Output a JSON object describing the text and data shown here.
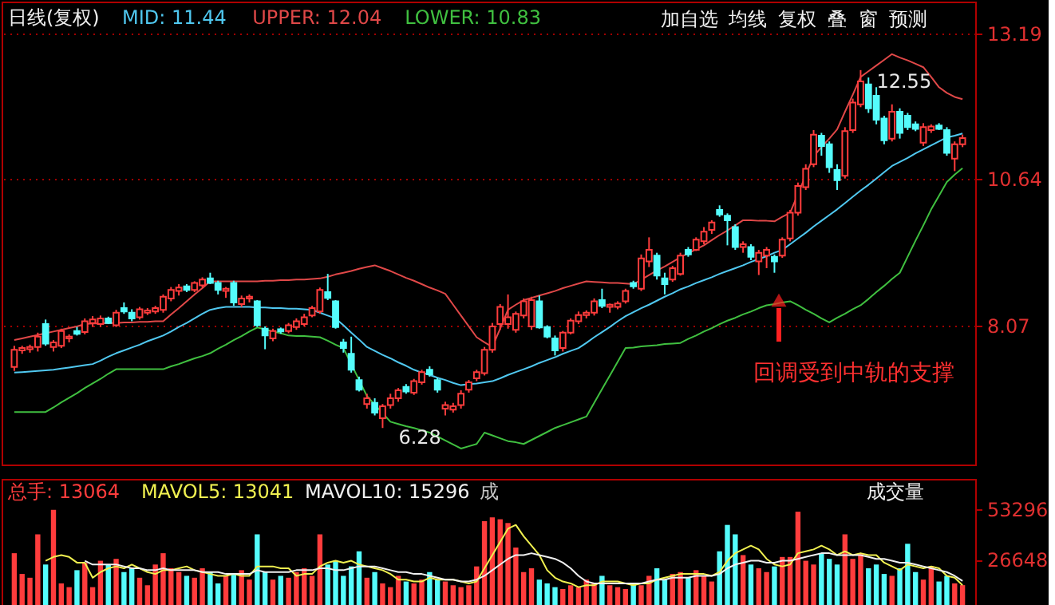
{
  "chart_data": [
    {
      "type": "candlestick",
      "title": "日线(复权)",
      "tick_labels": "y",
      "grid": "y",
      "ylim": [
        5.64,
        13.75
      ],
      "yticks": [
        8.07,
        10.64,
        13.19
      ],
      "categories": [
        null,
        null,
        null,
        null,
        null,
        null,
        null,
        null,
        null,
        null,
        null,
        null,
        null,
        null,
        null,
        null,
        null,
        null,
        null,
        null,
        null,
        null,
        null,
        null,
        null,
        null,
        null,
        null,
        null,
        null,
        null,
        null,
        null,
        null,
        null,
        null,
        null,
        null,
        null,
        null,
        null,
        null,
        null,
        null,
        null,
        null,
        null,
        null,
        null,
        null,
        null,
        null,
        null,
        null,
        null,
        null,
        null,
        null,
        null,
        null,
        null,
        null,
        null,
        null,
        null,
        null,
        null,
        null,
        null,
        null,
        null,
        null,
        null,
        null,
        null,
        null,
        null,
        null,
        null,
        null,
        null,
        null,
        null,
        null,
        null,
        null,
        null,
        null,
        null,
        null,
        null,
        null,
        null,
        null,
        null,
        null,
        null,
        null,
        null,
        null,
        null,
        null,
        null,
        null,
        null,
        null,
        null,
        null,
        null,
        null,
        null,
        null,
        null,
        null,
        null,
        null,
        null,
        null,
        null,
        null,
        null,
        null
      ],
      "ohlc": [
        [
          7.35,
          7.72,
          7.28,
          7.65
        ],
        [
          7.64,
          7.72,
          7.58,
          7.68
        ],
        [
          7.66,
          7.74,
          7.6,
          7.7
        ],
        [
          7.7,
          7.95,
          7.62,
          7.88
        ],
        [
          8.1,
          8.18,
          7.72,
          7.76
        ],
        [
          7.7,
          7.82,
          7.62,
          7.78
        ],
        [
          7.72,
          8.02,
          7.68,
          7.98
        ],
        [
          7.85,
          7.92,
          7.78,
          7.88
        ],
        [
          7.98,
          8.05,
          7.9,
          7.93
        ],
        [
          7.96,
          8.2,
          7.92,
          8.15
        ],
        [
          8.12,
          8.24,
          8.05,
          8.18
        ],
        [
          8.1,
          8.25,
          8.05,
          8.2
        ],
        [
          8.2,
          8.23,
          8.1,
          8.12
        ],
        [
          8.08,
          8.35,
          8.05,
          8.3
        ],
        [
          8.38,
          8.48,
          8.28,
          8.32
        ],
        [
          8.3,
          8.36,
          8.15,
          8.2
        ],
        [
          8.22,
          8.4,
          8.18,
          8.36
        ],
        [
          8.3,
          8.38,
          8.26,
          8.34
        ],
        [
          8.32,
          8.42,
          8.28,
          8.38
        ],
        [
          8.35,
          8.62,
          8.3,
          8.58
        ],
        [
          8.55,
          8.75,
          8.5,
          8.7
        ],
        [
          8.68,
          8.8,
          8.6,
          8.74
        ],
        [
          8.76,
          8.8,
          8.66,
          8.7
        ],
        [
          8.7,
          8.85,
          8.66,
          8.82
        ],
        [
          8.78,
          8.92,
          8.74,
          8.88
        ],
        [
          8.9,
          9.0,
          8.8,
          8.82
        ],
        [
          8.82,
          8.86,
          8.62,
          8.7
        ],
        [
          8.68,
          8.75,
          8.56,
          8.72
        ],
        [
          8.82,
          8.86,
          8.42,
          8.48
        ],
        [
          8.45,
          8.6,
          8.4,
          8.55
        ],
        [
          8.55,
          8.62,
          8.48,
          8.58
        ],
        [
          8.5,
          8.52,
          8.05,
          8.08
        ],
        [
          8.02,
          8.06,
          7.66,
          7.9
        ],
        [
          7.85,
          8.02,
          7.8,
          7.98
        ],
        [
          8.01,
          8.04,
          7.93,
          7.97
        ],
        [
          7.98,
          8.12,
          7.94,
          8.08
        ],
        [
          8.05,
          8.2,
          8.0,
          8.15
        ],
        [
          8.1,
          8.28,
          8.06,
          8.22
        ],
        [
          8.25,
          8.42,
          8.22,
          8.38
        ],
        [
          8.32,
          8.74,
          8.28,
          8.7
        ],
        [
          8.66,
          8.98,
          8.52,
          8.56
        ],
        [
          8.5,
          8.52,
          8.02,
          8.05
        ],
        [
          7.78,
          7.84,
          7.6,
          7.68
        ],
        [
          7.58,
          7.88,
          7.25,
          7.3
        ],
        [
          7.12,
          7.18,
          6.92,
          6.95
        ],
        [
          6.7,
          6.88,
          6.62,
          6.8
        ],
        [
          6.72,
          6.8,
          6.5,
          6.55
        ],
        [
          6.45,
          6.7,
          6.28,
          6.66
        ],
        [
          6.68,
          6.88,
          6.62,
          6.8
        ],
        [
          6.8,
          6.98,
          6.74,
          6.94
        ],
        [
          7.0,
          7.05,
          6.88,
          6.92
        ],
        [
          6.9,
          7.14,
          6.86,
          7.1
        ],
        [
          7.08,
          7.3,
          7.04,
          7.26
        ],
        [
          7.3,
          7.36,
          7.18,
          7.22
        ],
        [
          7.12,
          7.16,
          6.9,
          6.95
        ],
        [
          6.62,
          6.74,
          6.5,
          6.68
        ],
        [
          6.6,
          6.72,
          6.55,
          6.66
        ],
        [
          6.68,
          6.94,
          6.62,
          6.88
        ],
        [
          6.95,
          7.12,
          6.9,
          7.08
        ],
        [
          7.15,
          7.3,
          7.1,
          7.26
        ],
        [
          7.24,
          7.7,
          7.2,
          7.65
        ],
        [
          7.65,
          8.12,
          7.6,
          8.06
        ],
        [
          8.1,
          8.45,
          8.0,
          8.4
        ],
        [
          8.1,
          8.62,
          8.02,
          8.22
        ],
        [
          8.0,
          8.32,
          7.95,
          8.28
        ],
        [
          8.25,
          8.55,
          8.2,
          8.5
        ],
        [
          8.06,
          8.58,
          8.0,
          8.52
        ],
        [
          8.5,
          8.6,
          8.02,
          8.04
        ],
        [
          8.05,
          8.08,
          7.85,
          7.88
        ],
        [
          7.85,
          7.9,
          7.55,
          7.64
        ],
        [
          7.68,
          7.98,
          7.62,
          7.95
        ],
        [
          7.95,
          8.2,
          7.92,
          8.16
        ],
        [
          8.15,
          8.32,
          8.1,
          8.26
        ],
        [
          8.26,
          8.34,
          8.2,
          8.3
        ],
        [
          8.3,
          8.55,
          8.25,
          8.5
        ],
        [
          8.52,
          8.72,
          8.38,
          8.42
        ],
        [
          8.4,
          8.46,
          8.3,
          8.44
        ],
        [
          8.4,
          8.5,
          8.36,
          8.46
        ],
        [
          8.5,
          8.72,
          8.46,
          8.68
        ],
        [
          8.82,
          8.86,
          8.72,
          8.76
        ],
        [
          8.72,
          9.32,
          8.68,
          9.25
        ],
        [
          9.2,
          9.62,
          9.1,
          9.4
        ],
        [
          9.3,
          9.35,
          8.88,
          8.95
        ],
        [
          8.9,
          9.0,
          8.62,
          8.8
        ],
        [
          8.88,
          9.12,
          8.84,
          9.08
        ],
        [
          8.98,
          9.35,
          8.95,
          9.3
        ],
        [
          9.4,
          9.45,
          9.28,
          9.32
        ],
        [
          9.4,
          9.62,
          9.38,
          9.58
        ],
        [
          9.55,
          9.8,
          9.5,
          9.72
        ],
        [
          9.75,
          9.92,
          9.68,
          9.88
        ],
        [
          10.1,
          10.18,
          9.98,
          10.02
        ],
        [
          10.0,
          10.04,
          9.48,
          9.92
        ],
        [
          9.8,
          9.85,
          9.4,
          9.45
        ],
        [
          9.45,
          9.55,
          9.35,
          9.5
        ],
        [
          9.45,
          9.5,
          9.22,
          9.28
        ],
        [
          9.2,
          9.4,
          8.96,
          9.35
        ],
        [
          9.3,
          9.45,
          9.08,
          9.4
        ],
        [
          9.28,
          9.32,
          9.0,
          9.2
        ],
        [
          9.3,
          9.62,
          9.26,
          9.58
        ],
        [
          9.6,
          10.1,
          9.55,
          10.05
        ],
        [
          10.05,
          10.58,
          10.0,
          10.52
        ],
        [
          10.5,
          10.9,
          10.45,
          10.82
        ],
        [
          10.9,
          11.5,
          10.85,
          11.42
        ],
        [
          11.4,
          11.45,
          11.05,
          11.22
        ],
        [
          11.25,
          11.3,
          10.75,
          10.85
        ],
        [
          10.8,
          10.9,
          10.45,
          10.62
        ],
        [
          10.7,
          11.55,
          10.65,
          11.48
        ],
        [
          11.5,
          12.05,
          11.45,
          11.98
        ],
        [
          11.95,
          12.55,
          11.9,
          12.35
        ],
        [
          12.3,
          12.42,
          11.8,
          11.88
        ],
        [
          12.1,
          12.25,
          11.6,
          11.68
        ],
        [
          11.7,
          11.75,
          11.25,
          11.32
        ],
        [
          11.35,
          11.95,
          11.3,
          11.82
        ],
        [
          11.82,
          11.88,
          11.35,
          11.45
        ],
        [
          11.75,
          11.8,
          11.5,
          11.55
        ],
        [
          11.6,
          11.65,
          11.48,
          11.52
        ],
        [
          11.28,
          11.62,
          11.22,
          11.55
        ],
        [
          11.5,
          11.6,
          11.45,
          11.56
        ],
        [
          11.58,
          11.62,
          11.5,
          11.52
        ],
        [
          11.5,
          11.55,
          11.05,
          11.1
        ],
        [
          11.0,
          11.3,
          10.78,
          11.25
        ],
        [
          11.25,
          11.42,
          11.2,
          11.36
        ]
      ],
      "colors": [
        "#ff3c3c",
        "#ff3c3c",
        "#ff3c3c",
        "#ff3c3c",
        "#54fcfc",
        "#ff3c3c",
        "#ff3c3c",
        "#ff3c3c",
        "#54fcfc",
        "#ff3c3c",
        "#ff3c3c",
        "#ff3c3c",
        "#54fcfc",
        "#ff3c3c",
        "#54fcfc",
        "#54fcfc",
        "#ff3c3c",
        "#ff3c3c",
        "#ff3c3c",
        "#ff3c3c",
        "#ff3c3c",
        "#ff3c3c",
        "#54fcfc",
        "#ff3c3c",
        "#ff3c3c",
        "#54fcfc",
        "#54fcfc",
        "#ff3c3c",
        "#54fcfc",
        "#ff3c3c",
        "#ff3c3c",
        "#54fcfc",
        "#54fcfc",
        "#ff3c3c",
        "#54fcfc",
        "#ff3c3c",
        "#ff3c3c",
        "#ff3c3c",
        "#ff3c3c",
        "#ff3c3c",
        "#54fcfc",
        "#54fcfc",
        "#54fcfc",
        "#54fcfc",
        "#54fcfc",
        "#ff3c3c",
        "#54fcfc",
        "#ff3c3c",
        "#ff3c3c",
        "#ff3c3c",
        "#54fcfc",
        "#ff3c3c",
        "#ff3c3c",
        "#54fcfc",
        "#54fcfc",
        "#ff3c3c",
        "#ff3c3c",
        "#ff3c3c",
        "#ff3c3c",
        "#ff3c3c",
        "#ff3c3c",
        "#ff3c3c",
        "#ff3c3c",
        "#ff3c3c",
        "#ff3c3c",
        "#ff3c3c",
        "#ff3c3c",
        "#54fcfc",
        "#54fcfc",
        "#54fcfc",
        "#ff3c3c",
        "#ff3c3c",
        "#ff3c3c",
        "#ff3c3c",
        "#ff3c3c",
        "#54fcfc",
        "#ff3c3c",
        "#ff3c3c",
        "#ff3c3c",
        "#54fcfc",
        "#ff3c3c",
        "#ff3c3c",
        "#54fcfc",
        "#54fcfc",
        "#ff3c3c",
        "#ff3c3c",
        "#54fcfc",
        "#ff3c3c",
        "#ff3c3c",
        "#ff3c3c",
        "#54fcfc",
        "#54fcfc",
        "#54fcfc",
        "#ff3c3c",
        "#54fcfc",
        "#ff3c3c",
        "#ff3c3c",
        "#54fcfc",
        "#ff3c3c",
        "#ff3c3c",
        "#ff3c3c",
        "#ff3c3c",
        "#ff3c3c",
        "#54fcfc",
        "#54fcfc",
        "#54fcfc",
        "#ff3c3c",
        "#ff3c3c",
        "#ff3c3c",
        "#54fcfc",
        "#54fcfc",
        "#54fcfc",
        "#ff3c3c",
        "#54fcfc",
        "#54fcfc",
        "#54fcfc",
        "#ff3c3c",
        "#ff3c3c",
        "#54fcfc",
        "#54fcfc",
        "#ff3c3c",
        "#ff3c3c"
      ],
      "series": [
        {
          "name": "MID: 11.44",
          "type": "line",
          "color": "#50c8f0",
          "values": [
            7.25,
            7.26,
            7.27,
            7.28,
            7.29,
            7.3,
            7.32,
            7.34,
            7.36,
            7.38,
            7.4,
            7.46,
            7.53,
            7.59,
            7.64,
            7.69,
            7.74,
            7.8,
            7.85,
            7.9,
            7.97,
            8.05,
            8.12,
            8.2,
            8.28,
            8.35,
            8.38,
            8.4,
            8.4,
            8.4,
            8.4,
            8.39,
            8.39,
            8.38,
            8.38,
            8.37,
            8.37,
            8.36,
            8.35,
            8.3,
            8.25,
            8.2,
            8.08,
            7.95,
            7.83,
            7.7,
            7.63,
            7.56,
            7.5,
            7.43,
            7.37,
            7.3,
            7.25,
            7.21,
            7.16,
            7.12,
            7.07,
            7.03,
            7.05,
            7.06,
            7.08,
            7.1,
            7.15,
            7.21,
            7.26,
            7.31,
            7.36,
            7.42,
            7.47,
            7.52,
            7.58,
            7.63,
            7.68,
            7.77,
            7.87,
            7.96,
            8.05,
            8.15,
            8.24,
            8.31,
            8.38,
            8.44,
            8.51,
            8.58,
            8.64,
            8.71,
            8.76,
            8.82,
            8.87,
            8.92,
            8.98,
            9.03,
            9.08,
            9.13,
            9.19,
            9.24,
            9.29,
            9.35,
            9.4,
            9.5,
            9.6,
            9.7,
            9.81,
            9.91,
            10.01,
            10.11,
            10.22,
            10.33,
            10.44,
            10.54,
            10.65,
            10.76,
            10.87,
            10.94,
            11.01,
            11.09,
            11.16,
            11.23,
            11.3,
            11.37,
            11.4,
            11.44
          ]
        },
        {
          "name": "UPPER: 12.04",
          "type": "line",
          "color": "#e04848",
          "values": [
            7.82,
            7.85,
            7.88,
            7.91,
            7.94,
            7.97,
            8.0,
            8.03,
            8.06,
            8.1,
            8.11,
            8.11,
            8.12,
            8.12,
            8.13,
            8.13,
            8.14,
            8.14,
            8.15,
            8.15,
            8.27,
            8.38,
            8.5,
            8.62,
            8.73,
            8.85,
            8.85,
            8.85,
            8.85,
            8.85,
            8.85,
            8.85,
            8.86,
            8.86,
            8.87,
            8.87,
            8.88,
            8.88,
            8.89,
            8.9,
            8.93,
            8.97,
            9.0,
            9.03,
            9.07,
            9.1,
            9.13,
            9.08,
            9.03,
            8.97,
            8.91,
            8.86,
            8.8,
            8.74,
            8.69,
            8.63,
            8.44,
            8.25,
            8.06,
            7.87,
            7.78,
            7.7,
            8.02,
            8.35,
            8.44,
            8.52,
            8.56,
            8.6,
            8.64,
            8.68,
            8.73,
            8.77,
            8.81,
            8.85,
            8.84,
            8.83,
            8.82,
            8.82,
            8.81,
            8.8,
            8.88,
            8.96,
            9.04,
            9.11,
            9.19,
            9.27,
            9.34,
            9.41,
            9.48,
            9.57,
            9.66,
            9.74,
            9.83,
            9.92,
            9.92,
            9.91,
            9.91,
            9.9,
            9.98,
            10.05,
            10.38,
            10.71,
            11.04,
            11.2,
            11.35,
            11.51,
            11.82,
            12.12,
            12.43,
            12.53,
            12.63,
            12.73,
            12.83,
            12.77,
            12.72,
            12.66,
            12.6,
            12.43,
            12.25,
            12.15,
            12.08,
            12.04
          ]
        },
        {
          "name": "LOWER: 10.83",
          "type": "line",
          "color": "#40c040",
          "values": [
            6.56,
            6.56,
            6.56,
            6.56,
            6.56,
            6.64,
            6.73,
            6.81,
            6.89,
            6.98,
            7.06,
            7.14,
            7.23,
            7.31,
            7.31,
            7.31,
            7.31,
            7.31,
            7.31,
            7.31,
            7.36,
            7.4,
            7.45,
            7.5,
            7.54,
            7.59,
            7.67,
            7.74,
            7.82,
            7.89,
            7.97,
            8.04,
            8.01,
            7.97,
            7.94,
            7.9,
            7.89,
            7.89,
            7.88,
            7.87,
            7.81,
            7.74,
            7.68,
            7.4,
            7.12,
            6.84,
            6.69,
            6.54,
            6.39,
            6.35,
            6.31,
            6.28,
            6.24,
            6.2,
            6.13,
            6.06,
            5.99,
            5.92,
            5.96,
            6.0,
            6.2,
            6.15,
            6.1,
            6.05,
            6.03,
            6.0,
            6.07,
            6.14,
            6.21,
            6.28,
            6.33,
            6.38,
            6.43,
            6.48,
            6.72,
            6.96,
            7.2,
            7.44,
            7.68,
            7.69,
            7.71,
            7.72,
            7.73,
            7.75,
            7.76,
            7.77,
            7.84,
            7.9,
            7.97,
            8.03,
            8.1,
            8.16,
            8.21,
            8.27,
            8.32,
            8.38,
            8.43,
            8.45,
            8.48,
            8.5,
            8.43,
            8.35,
            8.28,
            8.2,
            8.13,
            8.21,
            8.28,
            8.36,
            8.43,
            8.54,
            8.66,
            8.77,
            8.89,
            9.0,
            9.28,
            9.56,
            9.83,
            10.11,
            10.35,
            10.59,
            10.72,
            10.83
          ]
        }
      ],
      "annotations": [
        "6.28",
        "12.55",
        "回调受到中轨的支撑",
        "加自选",
        "均线",
        "复权",
        "叠",
        "窗",
        "预测"
      ]
    },
    {
      "type": "bar",
      "tick_labels": "y",
      "ylim": [
        0,
        69400
      ],
      "yticks": [
        26648,
        53296
      ],
      "categories": [
        null,
        null,
        null,
        null,
        null,
        null,
        null,
        null,
        null,
        null,
        null,
        null,
        null,
        null,
        null,
        null,
        null,
        null,
        null,
        null,
        null,
        null,
        null,
        null,
        null,
        null,
        null,
        null,
        null,
        null,
        null,
        null,
        null,
        null,
        null,
        null,
        null,
        null,
        null,
        null,
        null,
        null,
        null,
        null,
        null,
        null,
        null,
        null,
        null,
        null,
        null,
        null,
        null,
        null,
        null,
        null,
        null,
        null,
        null,
        null,
        null,
        null,
        null,
        null,
        null,
        null,
        null,
        null,
        null,
        null,
        null,
        null,
        null,
        null,
        null,
        null,
        null,
        null,
        null,
        null,
        null,
        null,
        null,
        null,
        null,
        null,
        null,
        null,
        null,
        null,
        null,
        null,
        null,
        null,
        null,
        null,
        null,
        null,
        null,
        null,
        null,
        null,
        null,
        null,
        null,
        null,
        null,
        null,
        null,
        null,
        null,
        null,
        null,
        null,
        null,
        null,
        null,
        null,
        null,
        null,
        null,
        null
      ],
      "series": [
        {
          "name": "总手: 13064",
          "type": "bar",
          "colors": [
            "#ff3c3c",
            "#ff3c3c",
            "#ff3c3c",
            "#ff3c3c",
            "#54fcfc",
            "#ff3c3c",
            "#ff3c3c",
            "#ff3c3c",
            "#54fcfc",
            "#ff3c3c",
            "#ff3c3c",
            "#ff3c3c",
            "#54fcfc",
            "#ff3c3c",
            "#54fcfc",
            "#54fcfc",
            "#ff3c3c",
            "#ff3c3c",
            "#ff3c3c",
            "#ff3c3c",
            "#ff3c3c",
            "#ff3c3c",
            "#54fcfc",
            "#ff3c3c",
            "#ff3c3c",
            "#54fcfc",
            "#54fcfc",
            "#ff3c3c",
            "#54fcfc",
            "#ff3c3c",
            "#ff3c3c",
            "#54fcfc",
            "#54fcfc",
            "#ff3c3c",
            "#54fcfc",
            "#ff3c3c",
            "#ff3c3c",
            "#ff3c3c",
            "#ff3c3c",
            "#ff3c3c",
            "#54fcfc",
            "#54fcfc",
            "#54fcfc",
            "#54fcfc",
            "#54fcfc",
            "#ff3c3c",
            "#54fcfc",
            "#ff3c3c",
            "#ff3c3c",
            "#ff3c3c",
            "#54fcfc",
            "#ff3c3c",
            "#ff3c3c",
            "#54fcfc",
            "#54fcfc",
            "#ff3c3c",
            "#ff3c3c",
            "#ff3c3c",
            "#ff3c3c",
            "#ff3c3c",
            "#ff3c3c",
            "#ff3c3c",
            "#ff3c3c",
            "#ff3c3c",
            "#ff3c3c",
            "#ff3c3c",
            "#ff3c3c",
            "#54fcfc",
            "#54fcfc",
            "#54fcfc",
            "#ff3c3c",
            "#ff3c3c",
            "#ff3c3c",
            "#ff3c3c",
            "#ff3c3c",
            "#54fcfc",
            "#ff3c3c",
            "#ff3c3c",
            "#ff3c3c",
            "#54fcfc",
            "#ff3c3c",
            "#ff3c3c",
            "#54fcfc",
            "#54fcfc",
            "#ff3c3c",
            "#ff3c3c",
            "#54fcfc",
            "#ff3c3c",
            "#ff3c3c",
            "#ff3c3c",
            "#54fcfc",
            "#54fcfc",
            "#54fcfc",
            "#ff3c3c",
            "#54fcfc",
            "#ff3c3c",
            "#ff3c3c",
            "#54fcfc",
            "#ff3c3c",
            "#ff3c3c",
            "#ff3c3c",
            "#ff3c3c",
            "#ff3c3c",
            "#54fcfc",
            "#54fcfc",
            "#54fcfc",
            "#ff3c3c",
            "#ff3c3c",
            "#ff3c3c",
            "#54fcfc",
            "#54fcfc",
            "#54fcfc",
            "#ff3c3c",
            "#54fcfc",
            "#54fcfc",
            "#54fcfc",
            "#ff3c3c",
            "#ff3c3c",
            "#54fcfc",
            "#54fcfc",
            "#ff3c3c",
            "#ff3c3c"
          ],
          "values": [
            30000,
            19000,
            17000,
            40000,
            24000,
            53000,
            14000,
            12000,
            21000,
            25000,
            12000,
            26000,
            24000,
            27000,
            20000,
            22000,
            17000,
            13000,
            24000,
            30000,
            22000,
            20000,
            18000,
            17000,
            22000,
            20000,
            14000,
            18000,
            19000,
            21000,
            16000,
            40000,
            20000,
            16000,
            18000,
            17000,
            20000,
            22000,
            18000,
            40000,
            24000,
            26000,
            18000,
            23000,
            31000,
            17000,
            20000,
            14000,
            12000,
            18000,
            15000,
            14000,
            16000,
            20000,
            16000,
            15000,
            13000,
            12000,
            13000,
            23000,
            47000,
            49000,
            48000,
            46000,
            33000,
            20000,
            22000,
            16000,
            14000,
            12000,
            11000,
            13000,
            12000,
            16000,
            14000,
            18000,
            13000,
            12000,
            11000,
            14000,
            13000,
            18000,
            22000,
            16000,
            19000,
            20000,
            17000,
            21000,
            18000,
            15000,
            31000,
            45000,
            40000,
            29000,
            24000,
            22000,
            20000,
            23000,
            28000,
            28000,
            52000,
            26000,
            24000,
            30000,
            27000,
            24000,
            40000,
            27000,
            30000,
            22000,
            24000,
            19000,
            18000,
            22000,
            35000,
            20000,
            16000,
            23000,
            15000,
            18000,
            14000,
            13064
          ]
        },
        {
          "name": "MAVOL5: 13041",
          "type": "line",
          "color": "#f0f050",
          "values": [
            null,
            null,
            null,
            null,
            26000,
            28000,
            29000,
            28000,
            25000,
            25000,
            17000,
            20000,
            22000,
            23000,
            22000,
            24000,
            22000,
            20000,
            19000,
            21000,
            21000,
            22000,
            23000,
            21000,
            20000,
            19000,
            18000,
            18000,
            19000,
            18000,
            18000,
            23000,
            23000,
            23000,
            22000,
            22000,
            18000,
            19000,
            19000,
            23000,
            25000,
            26000,
            25000,
            26000,
            24000,
            23000,
            22000,
            21000,
            19000,
            16000,
            16000,
            15000,
            15000,
            17000,
            16000,
            16000,
            16000,
            15000,
            14000,
            15000,
            22000,
            29000,
            36000,
            43000,
            45000,
            39000,
            34000,
            29000,
            21000,
            17000,
            15000,
            14000,
            12000,
            13000,
            13000,
            15000,
            15000,
            15000,
            14000,
            13000,
            14000,
            14000,
            16000,
            17000,
            18000,
            19000,
            19000,
            19000,
            19000,
            18000,
            20000,
            26000,
            30000,
            32000,
            34000,
            32000,
            27000,
            24000,
            23000,
            24000,
            30000,
            31000,
            32000,
            34000,
            32000,
            29000,
            31000,
            29000,
            30000,
            29000,
            29000,
            25000,
            23000,
            21000,
            24000,
            23000,
            22000,
            23000,
            22000,
            18000,
            17000,
            13041
          ]
        },
        {
          "name": "MAVOL10: 15296",
          "type": "line",
          "color": "#f0f0f0",
          "values": [
            null,
            null,
            null,
            null,
            null,
            null,
            null,
            null,
            null,
            26000,
            24000,
            24000,
            24000,
            24000,
            23000,
            22000,
            22000,
            21000,
            21000,
            22000,
            21000,
            21000,
            21000,
            21000,
            20000,
            20000,
            20000,
            19000,
            19000,
            19000,
            19000,
            21000,
            20000,
            20000,
            20000,
            20000,
            21000,
            21000,
            21000,
            22000,
            22000,
            21000,
            21000,
            22000,
            23000,
            23000,
            23000,
            22000,
            21000,
            20000,
            20000,
            19000,
            19000,
            18000,
            17000,
            16000,
            16000,
            15000,
            15000,
            16000,
            18000,
            21000,
            24000,
            27000,
            29000,
            29000,
            30000,
            29000,
            28000,
            27000,
            25000,
            22000,
            18000,
            15000,
            14000,
            14000,
            14000,
            14000,
            14000,
            14000,
            14000,
            15000,
            16000,
            16000,
            17000,
            17000,
            17000,
            18000,
            18000,
            18000,
            19000,
            22000,
            24000,
            25000,
            26000,
            26000,
            25000,
            25000,
            26000,
            26000,
            27000,
            28000,
            29000,
            30000,
            30000,
            29000,
            29000,
            29000,
            29000,
            28000,
            27000,
            27000,
            26000,
            25000,
            25000,
            24000,
            23000,
            22000,
            21000,
            20000,
            18000,
            15296
          ]
        }
      ],
      "annotations": [
        "成",
        "成交量"
      ]
    }
  ]
}
